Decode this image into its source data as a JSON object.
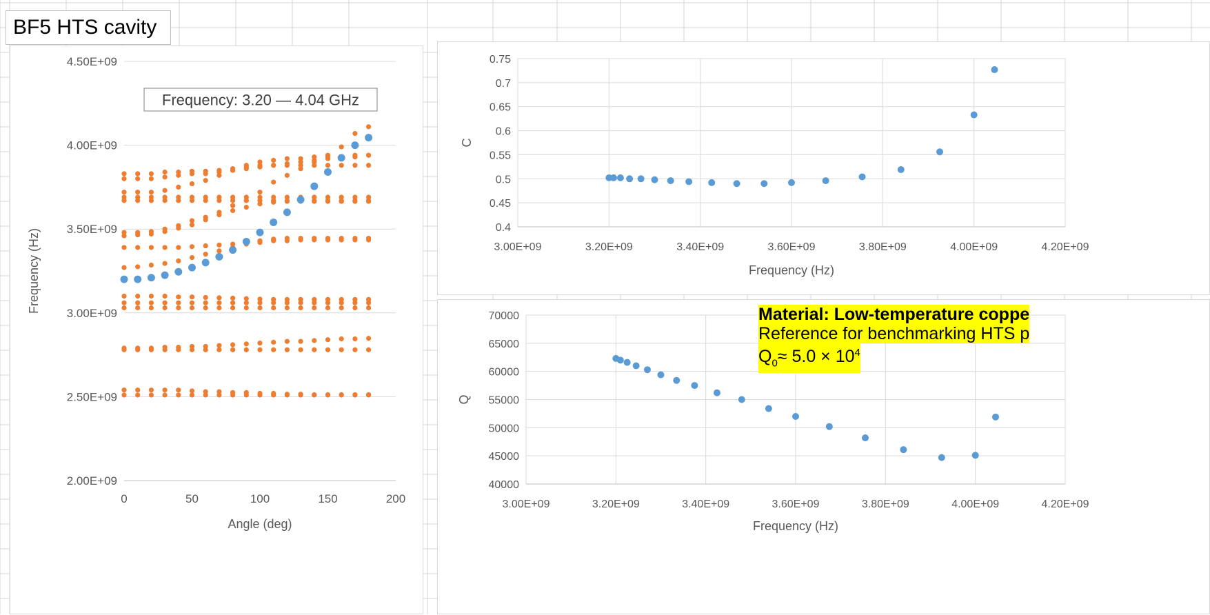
{
  "sheet_title": "BF5 HTS cavity",
  "colors": {
    "blue": "#5b9bd5",
    "orange": "#ed7d31",
    "highlight": "#ffff00"
  },
  "note": {
    "line1": "Material: Low-temperature coppe",
    "line2": "Reference for benchmarking HTS p",
    "line3_main": "Q",
    "line3_sub": "0",
    "line3_mid": " ≈ 5.0 × 10",
    "line3_sup": "4"
  },
  "chart_data": [
    {
      "id": "freq-vs-angle",
      "type": "scatter",
      "xlabel": "Angle (deg)",
      "ylabel": "Frequency (Hz)",
      "xlim": [
        0,
        200
      ],
      "ylim": [
        2000000000,
        4500000000
      ],
      "xticks": [
        0,
        50,
        100,
        150,
        200
      ],
      "xtick_labels": [
        "0",
        "50",
        "100",
        "150",
        "200"
      ],
      "yticks": [
        2000000000,
        2500000000,
        3000000000,
        3500000000,
        4000000000,
        4500000000
      ],
      "ytick_labels": [
        "2.00E+09",
        "2.50E+09",
        "3.00E+09",
        "3.50E+09",
        "4.00E+09",
        "4.50E+09"
      ],
      "grid": "horizontal",
      "annotation": "Frequency: 3.20 — 4.04 GHz",
      "series": [
        {
          "color": "orange",
          "x": [
            0,
            10,
            20,
            30,
            40,
            50,
            60,
            70,
            80,
            90,
            100,
            110,
            120,
            130,
            140,
            150,
            160,
            170,
            180
          ],
          "bands": [
            [
              2510000000,
              2510000000,
              2510000000,
              2510000000,
              2510000000,
              2510000000,
              2510000000,
              2510000000,
              2510000000,
              2510000000,
              2510000000,
              2510000000,
              2510000000,
              2510000000,
              2510000000,
              2510000000,
              2510000000,
              2510000000,
              2510000000
            ],
            [
              2540000000,
              2540000000,
              2540000000,
              2540000000,
              2540000000,
              2535000000,
              2530000000,
              2530000000,
              2525000000,
              2525000000,
              2520000000,
              2520000000,
              2515000000,
              2515000000,
              2512000000,
              2512000000,
              2512000000,
              2512000000,
              2512000000
            ],
            [
              2780000000,
              2780000000,
              2780000000,
              2780000000,
              2780000000,
              2780000000,
              2780000000,
              2780000000,
              2780000000,
              2780000000,
              2780000000,
              2780000000,
              2780000000,
              2780000000,
              2780000000,
              2780000000,
              2780000000,
              2780000000,
              2780000000
            ],
            [
              2790000000,
              2790000000,
              2790000000,
              2795000000,
              2795000000,
              2800000000,
              2800000000,
              2805000000,
              2810000000,
              2815000000,
              2820000000,
              2825000000,
              2830000000,
              2830000000,
              2835000000,
              2840000000,
              2845000000,
              2845000000,
              2848000000
            ],
            [
              3030000000,
              3030000000,
              3030000000,
              3030000000,
              3030000000,
              3030000000,
              3030000000,
              3030000000,
              3030000000,
              3030000000,
              3030000000,
              3030000000,
              3030000000,
              3030000000,
              3030000000,
              3030000000,
              3030000000,
              3030000000,
              3030000000
            ],
            [
              3060000000,
              3060000000,
              3060000000,
              3060000000,
              3060000000,
              3060000000,
              3060000000,
              3060000000,
              3060000000,
              3060000000,
              3060000000,
              3060000000,
              3060000000,
              3060000000,
              3060000000,
              3060000000,
              3060000000,
              3060000000,
              3060000000
            ],
            [
              3100000000,
              3100000000,
              3100000000,
              3100000000,
              3095000000,
              3095000000,
              3092000000,
              3090000000,
              3088000000,
              3085000000,
              3082000000,
              3080000000,
              3080000000,
              3080000000,
              3080000000,
              3080000000,
              3080000000,
              3080000000,
              3080000000
            ],
            [
              3270000000,
              3275000000,
              3285000000,
              3295000000,
              3310000000,
              3330000000,
              3350000000,
              3370000000,
              3390000000,
              3410000000,
              3420000000,
              3430000000,
              3430000000,
              3435000000,
              3435000000,
              3435000000,
              3435000000,
              3435000000,
              3435000000
            ],
            [
              3390000000,
              3390000000,
              3390000000,
              3390000000,
              3390000000,
              3395000000,
              3400000000,
              3405000000,
              3410000000,
              3420000000,
              3430000000,
              3440000000,
              3445000000,
              3445000000,
              3445000000,
              3445000000,
              3445000000,
              3445000000,
              3445000000
            ],
            [
              3460000000,
              3465000000,
              3470000000,
              3485000000,
              3505000000,
              3525000000,
              3555000000,
              3585000000,
              3610000000,
              3630000000,
              3650000000,
              3660000000,
              3665000000,
              3665000000,
              3665000000,
              3665000000,
              3665000000,
              3665000000,
              3665000000
            ],
            [
              3480000000,
              3480000000,
              3485000000,
              3500000000,
              3520000000,
              3550000000,
              3570000000,
              3600000000,
              3640000000,
              3670000000,
              3720000000,
              3780000000,
              3820000000,
              3860000000,
              3900000000,
              3940000000,
              3990000000,
              4070000000,
              4110000000
            ],
            [
              3670000000,
              3670000000,
              3670000000,
              3670000000,
              3670000000,
              3670000000,
              3670000000,
              3670000000,
              3670000000,
              3670000000,
              3670000000,
              3670000000,
              3670000000,
              3670000000,
              3670000000,
              3670000000,
              3670000000,
              3670000000,
              3670000000
            ],
            [
              3690000000,
              3690000000,
              3690000000,
              3690000000,
              3690000000,
              3690000000,
              3690000000,
              3690000000,
              3690000000,
              3690000000,
              3690000000,
              3690000000,
              3690000000,
              3690000000,
              3690000000,
              3690000000,
              3690000000,
              3690000000,
              3690000000
            ],
            [
              3720000000,
              3720000000,
              3720000000,
              3730000000,
              3750000000,
              3770000000,
              3790000000,
              3820000000,
              3850000000,
              3870000000,
              3880000000,
              3880000000,
              3880000000,
              3880000000,
              3880000000,
              3880000000,
              3880000000,
              3880000000,
              3880000000
            ],
            [
              3800000000,
              3800000000,
              3800000000,
              3810000000,
              3820000000,
              3830000000,
              3830000000,
              3840000000,
              3850000000,
              3860000000,
              3870000000,
              3880000000,
              3890000000,
              3900000000,
              3910000000,
              3920000000,
              3930000000,
              3930000000,
              3940000000
            ],
            [
              3830000000,
              3830000000,
              3830000000,
              3840000000,
              3840000000,
              3845000000,
              3845000000,
              3850000000,
              3860000000,
              3880000000,
              3900000000,
              3910000000,
              3920000000,
              3920000000,
              3930000000,
              3930000000,
              3930000000,
              3940000000,
              3940000000
            ]
          ]
        },
        {
          "color": "blue",
          "x": [
            0,
            10,
            20,
            30,
            40,
            50,
            60,
            70,
            80,
            90,
            100,
            110,
            120,
            130,
            140,
            150,
            160,
            170,
            180
          ],
          "y": [
            3200000000,
            3200000000,
            3210000000,
            3225000000,
            3245000000,
            3270000000,
            3300000000,
            3335000000,
            3375000000,
            3425000000,
            3480000000,
            3540000000,
            3600000000,
            3675000000,
            3755000000,
            3840000000,
            3925000000,
            4000000000,
            4045000000
          ]
        }
      ]
    },
    {
      "id": "c-vs-frequency",
      "type": "scatter",
      "xlabel": "Frequency (Hz)",
      "ylabel": "C",
      "xlim": [
        3000000000,
        4200000000
      ],
      "ylim": [
        0.4,
        0.75
      ],
      "xticks": [
        3000000000,
        3200000000,
        3400000000,
        3600000000,
        3800000000,
        4000000000,
        4200000000
      ],
      "xtick_labels": [
        "3.00E+09",
        "3.20E+09",
        "3.40E+09",
        "3.60E+09",
        "3.80E+09",
        "4.00E+09",
        "4.20E+09"
      ],
      "yticks": [
        0.4,
        0.45,
        0.5,
        0.55,
        0.6,
        0.65,
        0.7,
        0.75
      ],
      "ytick_labels": [
        "0.4",
        "0.45",
        "0.5",
        "0.55",
        "0.6",
        "0.65",
        "0.7",
        "0.75"
      ],
      "grid": "both",
      "series": [
        {
          "color": "blue",
          "x": [
            3200000000,
            3210000000,
            3225000000,
            3245000000,
            3270000000,
            3300000000,
            3335000000,
            3375000000,
            3425000000,
            3480000000,
            3540000000,
            3600000000,
            3675000000,
            3755000000,
            3840000000,
            3925000000,
            4000000000,
            4045000000
          ],
          "y": [
            0.502,
            0.502,
            0.502,
            0.5,
            0.5,
            0.498,
            0.496,
            0.494,
            0.492,
            0.49,
            0.49,
            0.492,
            0.496,
            0.504,
            0.519,
            0.556,
            0.633,
            0.727
          ]
        }
      ]
    },
    {
      "id": "q-vs-frequency",
      "type": "scatter",
      "xlabel": "Frequency (Hz)",
      "ylabel": "Q",
      "xlim": [
        3000000000,
        4200000000
      ],
      "ylim": [
        40000,
        70000
      ],
      "xticks": [
        3000000000,
        3200000000,
        3400000000,
        3600000000,
        3800000000,
        4000000000,
        4200000000
      ],
      "xtick_labels": [
        "3.00E+09",
        "3.20E+09",
        "3.40E+09",
        "3.60E+09",
        "3.80E+09",
        "4.00E+09",
        "4.20E+09"
      ],
      "yticks": [
        40000,
        45000,
        50000,
        55000,
        60000,
        65000,
        70000
      ],
      "ytick_labels": [
        "40000",
        "45000",
        "50000",
        "55000",
        "60000",
        "65000",
        "70000"
      ],
      "grid": "both",
      "series": [
        {
          "color": "blue",
          "x": [
            3200000000,
            3210000000,
            3225000000,
            3245000000,
            3270000000,
            3300000000,
            3335000000,
            3375000000,
            3425000000,
            3480000000,
            3540000000,
            3600000000,
            3675000000,
            3755000000,
            3840000000,
            3925000000,
            4000000000,
            4045000000
          ],
          "y": [
            62300,
            62000,
            61600,
            61000,
            60300,
            59400,
            58400,
            57500,
            56200,
            55000,
            53400,
            52000,
            50200,
            48200,
            46100,
            44700,
            45100,
            51900
          ]
        }
      ]
    }
  ]
}
